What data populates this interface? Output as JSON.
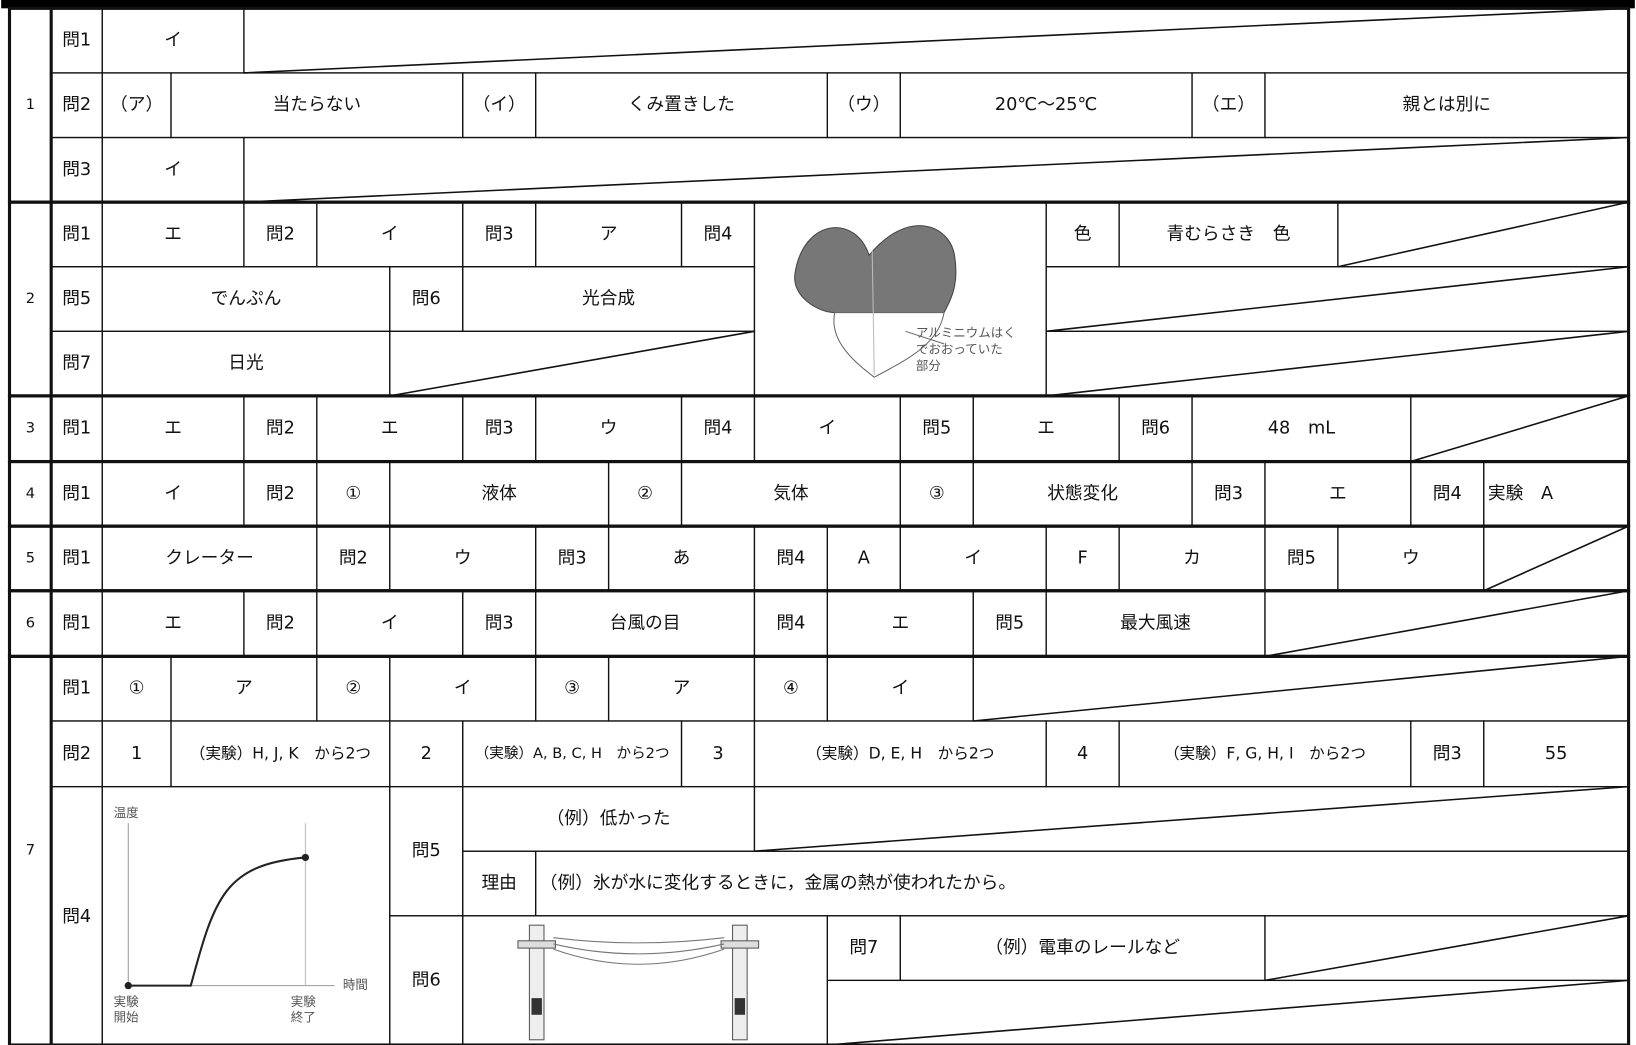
{
  "sections": [
    {
      "number": "1",
      "cells": [
        "問1",
        "イ",
        "問2",
        "（ア）",
        "当たらない",
        "（イ）",
        "くみ置きした",
        "（ウ）",
        "20℃～25℃",
        "（エ）",
        "親とは別に",
        "問3",
        "イ"
      ]
    },
    {
      "number": "2",
      "cells": [
        "問1",
        "エ",
        "問2",
        "イ",
        "問3",
        "ア",
        "問4",
        "色",
        "青むらさき　色",
        "問5",
        "でんぷん",
        "問6",
        "光合成",
        "問7",
        "日光"
      ],
      "figure_label": [
        "アルミニウムはく",
        "でおおっていた",
        "部分"
      ]
    },
    {
      "number": "3",
      "cells": [
        "問1",
        "エ",
        "問2",
        "エ",
        "問3",
        "ウ",
        "問4",
        "イ",
        "問5",
        "エ",
        "問6",
        "48　mL"
      ]
    },
    {
      "number": "4",
      "cells": [
        "問1",
        "イ",
        "問2",
        "①",
        "液体",
        "②",
        "気体",
        "③",
        "状態変化",
        "問3",
        "エ",
        "問4",
        "実験　A"
      ]
    },
    {
      "number": "5",
      "cells": [
        "問1",
        "クレーター",
        "問2",
        "ウ",
        "問3",
        "あ",
        "問4",
        "A",
        "イ",
        "F",
        "カ",
        "問5",
        "ウ"
      ]
    },
    {
      "number": "6",
      "cells": [
        "問1",
        "エ",
        "問2",
        "イ",
        "問3",
        "台風の目",
        "問4",
        "エ",
        "問5",
        "最大風速"
      ]
    },
    {
      "number": "7",
      "cells": [
        "問1",
        "①",
        "ア",
        "②",
        "イ",
        "③",
        "ア",
        "④",
        "イ",
        "問2",
        "1",
        "（実験）H, J, K　から2つ",
        "2",
        "（実験）A, B, C, H　から2つ",
        "3",
        "（実験）D, E, H　から2つ",
        "4",
        "（実験）F, G, H, I　から2つ",
        "問3",
        "55",
        "問4",
        "問5",
        "（例）低かった",
        "理由",
        "（例）氷が水に変化するときに，金属の熱が使われたから。",
        "問6",
        "問7",
        "（例）電車のレールなど"
      ],
      "graph_labels": {
        "y_axis": "温度",
        "x_axis": "時間",
        "start": [
          "実験",
          "開始"
        ],
        "end": [
          "実験",
          "終了"
        ]
      }
    }
  ]
}
